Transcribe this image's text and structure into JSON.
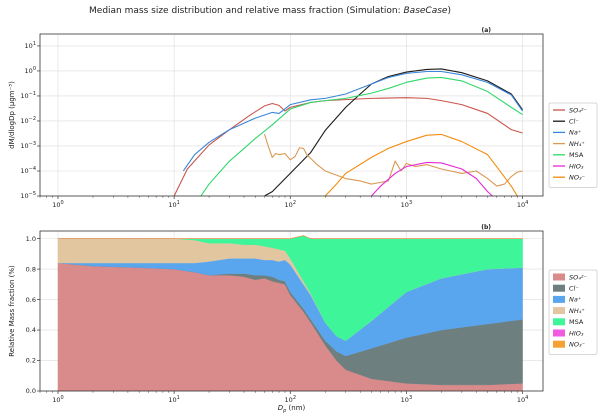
{
  "figure": {
    "title_prefix": "Median mass size distribution and relative mass fraction (Simulation: ",
    "title_emph": "BaseCase",
    "title_suffix": ")"
  },
  "chart_data": [
    {
      "type": "line",
      "panel_label": "(a)",
      "ylabel": "dM/dlogDp (μgm⁻³)",
      "xscale": "log",
      "yscale": "log",
      "xlim": [
        0.7,
        15000
      ],
      "ylim": [
        1e-05,
        30
      ],
      "x_ticks": [
        {
          "v": 1,
          "t": "10",
          "e": "0"
        },
        {
          "v": 10,
          "t": "10",
          "e": "1"
        },
        {
          "v": 100,
          "t": "10",
          "e": "2"
        },
        {
          "v": 1000,
          "t": "10",
          "e": "3"
        },
        {
          "v": 10000,
          "t": "10",
          "e": "4"
        }
      ],
      "y_ticks": [
        {
          "v": 1e-05,
          "t": "10",
          "e": "−5"
        },
        {
          "v": 0.0001,
          "t": "10",
          "e": "−4"
        },
        {
          "v": 0.001,
          "t": "10",
          "e": "−3"
        },
        {
          "v": 0.01,
          "t": "10",
          "e": "−2"
        },
        {
          "v": 0.1,
          "t": "10",
          "e": "−1"
        },
        {
          "v": 1,
          "t": "10",
          "e": "0"
        },
        {
          "v": 10,
          "t": "10",
          "e": "1"
        }
      ],
      "grid": true,
      "legend": "right",
      "series": [
        {
          "name": "SO₄²⁻",
          "color": "#c9554b",
          "points": [
            [
              10,
              1e-05
            ],
            [
              13,
              0.00012
            ],
            [
              20,
              0.0011
            ],
            [
              30,
              0.0045
            ],
            [
              45,
              0.017
            ],
            [
              60,
              0.04
            ],
            [
              70,
              0.05
            ],
            [
              80,
              0.042
            ],
            [
              90,
              0.025
            ],
            [
              100,
              0.035
            ],
            [
              150,
              0.055
            ],
            [
              200,
              0.065
            ],
            [
              500,
              0.08
            ],
            [
              1000,
              0.085
            ],
            [
              1500,
              0.08
            ],
            [
              2000,
              0.065
            ],
            [
              3000,
              0.045
            ],
            [
              5000,
              0.02
            ],
            [
              8000,
              0.0045
            ],
            [
              10000,
              0.0033
            ]
          ]
        },
        {
          "name": "Cl⁻",
          "color": "#1a1a1a",
          "points": [
            [
              60,
              1e-05
            ],
            [
              70,
              1.5e-05
            ],
            [
              100,
              8e-05
            ],
            [
              150,
              0.00055
            ],
            [
              200,
              0.0042
            ],
            [
              300,
              0.035
            ],
            [
              400,
              0.12
            ],
            [
              500,
              0.3
            ],
            [
              700,
              0.6
            ],
            [
              1000,
              0.9
            ],
            [
              1500,
              1.15
            ],
            [
              2000,
              1.2
            ],
            [
              3000,
              0.85
            ],
            [
              5000,
              0.4
            ],
            [
              8000,
              0.12
            ],
            [
              10000,
              0.028
            ]
          ]
        },
        {
          "name": "Na⁺",
          "color": "#3a86d9",
          "points": [
            [
              12,
              0.0001
            ],
            [
              15,
              0.00045
            ],
            [
              20,
              0.0014
            ],
            [
              30,
              0.0045
            ],
            [
              50,
              0.013
            ],
            [
              70,
              0.022
            ],
            [
              80,
              0.02
            ],
            [
              100,
              0.045
            ],
            [
              150,
              0.07
            ],
            [
              200,
              0.08
            ],
            [
              300,
              0.12
            ],
            [
              500,
              0.3
            ],
            [
              700,
              0.55
            ],
            [
              1000,
              0.8
            ],
            [
              1500,
              0.95
            ],
            [
              2000,
              0.95
            ],
            [
              3000,
              0.7
            ],
            [
              5000,
              0.35
            ],
            [
              8000,
              0.11
            ],
            [
              10000,
              0.025
            ]
          ]
        },
        {
          "name": "NH₄⁺",
          "color": "#d99a55",
          "points": [
            [
              60,
              0.003
            ],
            [
              65,
              0.0009
            ],
            [
              70,
              0.00035
            ],
            [
              75,
              0.0005
            ],
            [
              80,
              0.00045
            ],
            [
              90,
              0.0005
            ],
            [
              100,
              0.00028
            ],
            [
              110,
              0.00038
            ],
            [
              120,
              0.00085
            ],
            [
              130,
              0.0008
            ],
            [
              140,
              0.00042
            ],
            [
              150,
              0.00032
            ],
            [
              170,
              0.00018
            ],
            [
              200,
              0.0001
            ],
            [
              300,
              5e-05
            ],
            [
              400,
              4e-05
            ],
            [
              500,
              3e-05
            ],
            [
              700,
              4e-05
            ],
            [
              800,
              0.00025
            ],
            [
              900,
              0.0001
            ],
            [
              1000,
              0.0002
            ],
            [
              1200,
              0.00015
            ],
            [
              1500,
              0.00018
            ],
            [
              2000,
              0.00012
            ],
            [
              3000,
              8e-05
            ],
            [
              4000,
              0.0001
            ],
            [
              5000,
              5e-05
            ],
            [
              6000,
              2.5e-05
            ],
            [
              7000,
              3e-05
            ],
            [
              8000,
              6e-05
            ],
            [
              9000,
              9e-05
            ],
            [
              10000,
              0.0001
            ]
          ]
        },
        {
          "name": "MSA",
          "color": "#2fd86a",
          "points": [
            [
              17,
              1e-05
            ],
            [
              20,
              3e-05
            ],
            [
              30,
              0.00025
            ],
            [
              40,
              0.0008
            ],
            [
              50,
              0.002
            ],
            [
              70,
              0.007
            ],
            [
              100,
              0.03
            ],
            [
              150,
              0.055
            ],
            [
              200,
              0.065
            ],
            [
              300,
              0.08
            ],
            [
              500,
              0.13
            ],
            [
              700,
              0.2
            ],
            [
              1000,
              0.35
            ],
            [
              1500,
              0.52
            ],
            [
              2000,
              0.55
            ],
            [
              3000,
              0.4
            ],
            [
              5000,
              0.15
            ],
            [
              8000,
              0.035
            ],
            [
              10000,
              0.018
            ]
          ]
        },
        {
          "name": "HIO₃",
          "color": "#e62ad6",
          "points": [
            [
              500,
              1e-05
            ],
            [
              600,
              2.5e-05
            ],
            [
              800,
              8e-05
            ],
            [
              1000,
              0.00015
            ],
            [
              1500,
              0.00022
            ],
            [
              2000,
              0.00021
            ],
            [
              3000,
              0.00012
            ],
            [
              4000,
              5e-05
            ],
            [
              5000,
              1.5e-05
            ],
            [
              5500,
              1e-05
            ]
          ]
        },
        {
          "name": "NO₃⁻",
          "color": "#f28c0f",
          "points": [
            [
              200,
              1e-05
            ],
            [
              250,
              3e-05
            ],
            [
              300,
              8e-05
            ],
            [
              500,
              0.00035
            ],
            [
              700,
              0.0008
            ],
            [
              1000,
              0.0015
            ],
            [
              1500,
              0.0027
            ],
            [
              2000,
              0.0029
            ],
            [
              3000,
              0.0015
            ],
            [
              5000,
              0.00045
            ],
            [
              8000,
              2.5e-05
            ],
            [
              9000,
              1e-05
            ]
          ]
        }
      ]
    },
    {
      "type": "area",
      "stacked": true,
      "panel_label": "(b)",
      "xlabel": "D_p (nm)",
      "xlabel_main": "D",
      "xlabel_sub": "p",
      "xlabel_unit": " (nm)",
      "ylabel": "Relative Mass fraction (%)",
      "xscale": "log",
      "xlim": [
        0.7,
        15000
      ],
      "ylim": [
        0.0,
        1.05
      ],
      "x_ticks": [
        {
          "v": 1,
          "t": "10",
          "e": "0"
        },
        {
          "v": 10,
          "t": "10",
          "e": "1"
        },
        {
          "v": 100,
          "t": "10",
          "e": "2"
        },
        {
          "v": 1000,
          "t": "10",
          "e": "3"
        },
        {
          "v": 10000,
          "t": "10",
          "e": "4"
        }
      ],
      "y_ticks": [
        0.0,
        0.2,
        0.4,
        0.6,
        0.8,
        1.0
      ],
      "y_tick_labels": [
        "0.0",
        "0.2",
        "0.4",
        "0.6",
        "0.8",
        "1.0"
      ],
      "grid": true,
      "legend": "right",
      "x": [
        1,
        2,
        5,
        10,
        15,
        20,
        30,
        40,
        50,
        60,
        70,
        80,
        90,
        100,
        130,
        150,
        200,
        250,
        300,
        500,
        1000,
        2000,
        5000,
        10000
      ],
      "series": [
        {
          "name": "SO₄²⁻",
          "color": "#d98b8b",
          "values": [
            0.84,
            0.82,
            0.81,
            0.8,
            0.78,
            0.76,
            0.76,
            0.75,
            0.73,
            0.74,
            0.72,
            0.71,
            0.7,
            0.63,
            0.52,
            0.45,
            0.3,
            0.2,
            0.14,
            0.08,
            0.05,
            0.04,
            0.04,
            0.05
          ]
        },
        {
          "name": "Cl⁻",
          "color": "#6d7f7f",
          "values": [
            0.0,
            0.0,
            0.0,
            0.0,
            0.0,
            0.0,
            0.01,
            0.02,
            0.03,
            0.02,
            0.03,
            0.02,
            0.02,
            0.02,
            0.02,
            0.02,
            0.03,
            0.06,
            0.09,
            0.2,
            0.3,
            0.36,
            0.4,
            0.42
          ]
        },
        {
          "name": "Na⁺",
          "color": "#5aa6ee",
          "values": [
            0.0,
            0.02,
            0.03,
            0.04,
            0.06,
            0.09,
            0.1,
            0.1,
            0.11,
            0.1,
            0.11,
            0.12,
            0.14,
            0.18,
            0.16,
            0.16,
            0.12,
            0.1,
            0.1,
            0.18,
            0.3,
            0.34,
            0.36,
            0.34
          ]
        },
        {
          "name": "NH₄⁺",
          "color": "#e2c6a0",
          "values": [
            0.16,
            0.16,
            0.16,
            0.16,
            0.15,
            0.12,
            0.1,
            0.09,
            0.09,
            0.09,
            0.08,
            0.08,
            0.06,
            0.04,
            0.02,
            0.01,
            0.0,
            0.0,
            0.0,
            0.0,
            0.0,
            0.0,
            0.0,
            0.0
          ]
        },
        {
          "name": "MSA",
          "color": "#3ef59a",
          "values": [
            0.0,
            0.0,
            0.0,
            0.0,
            0.01,
            0.03,
            0.03,
            0.04,
            0.04,
            0.05,
            0.06,
            0.07,
            0.08,
            0.13,
            0.3,
            0.36,
            0.55,
            0.64,
            0.67,
            0.54,
            0.35,
            0.26,
            0.2,
            0.19
          ]
        },
        {
          "name": "HIO₃",
          "color": "#f25ae0",
          "values": [
            0,
            0,
            0,
            0,
            0,
            0,
            0,
            0,
            0,
            0,
            0,
            0,
            0,
            0,
            0,
            0,
            0,
            0,
            0,
            0,
            0,
            0,
            0,
            0
          ]
        },
        {
          "name": "NO₃⁻",
          "color": "#f5a033",
          "values": [
            0,
            0,
            0,
            0,
            0,
            0,
            0,
            0,
            0,
            0,
            0,
            0,
            0,
            0,
            0,
            0,
            0,
            0,
            0,
            0,
            0,
            0,
            0,
            0
          ]
        }
      ]
    }
  ]
}
